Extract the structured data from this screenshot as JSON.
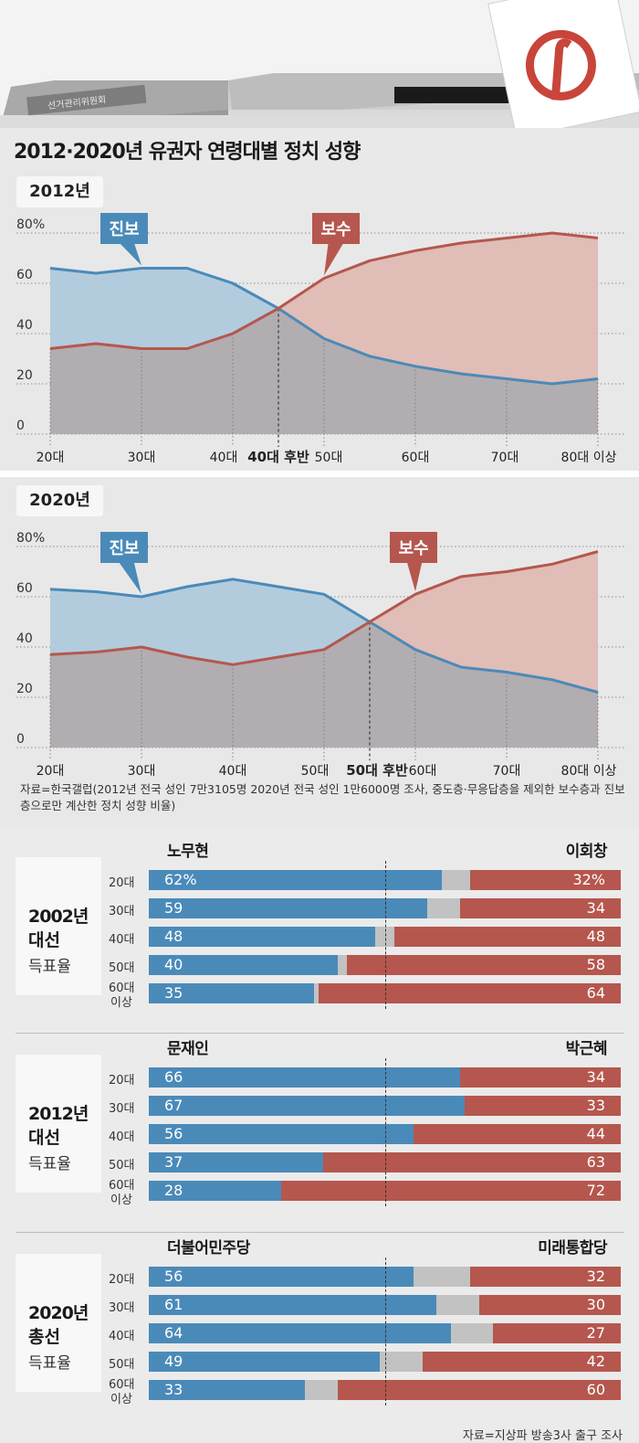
{
  "header": {
    "box_label": "선거관리위원회",
    "title": "2012·2020년 유권자 연령대별 정치 성향"
  },
  "colors": {
    "progressive": "#4a8ab9",
    "progressive_fill": "#b2ccdd",
    "conservative": "#b5574e",
    "conservative_fill": "#e0bdb7",
    "overlap_fill": "#b2adb1",
    "other": "#c2c2c2"
  },
  "chart_data": [
    {
      "type": "line",
      "year_label": "2012년",
      "y_ticks": [
        "80%",
        "60",
        "40",
        "20",
        "0"
      ],
      "ylim": [
        0,
        80
      ],
      "x_tick_labels": [
        "20대",
        "30대",
        "40대",
        "40대 후반",
        "50대",
        "60대",
        "70대",
        "80대 이상"
      ],
      "highlight_label": "40대 후반",
      "series": [
        {
          "name": "진보",
          "values": [
            66,
            64,
            66,
            66,
            60,
            50,
            38,
            31,
            27,
            24,
            22,
            20,
            22
          ]
        },
        {
          "name": "보수",
          "values": [
            34,
            36,
            34,
            34,
            40,
            50,
            62,
            69,
            73,
            76,
            78,
            80,
            78
          ]
        }
      ]
    },
    {
      "type": "line",
      "year_label": "2020년",
      "y_ticks": [
        "80%",
        "60",
        "40",
        "20",
        "0"
      ],
      "ylim": [
        0,
        80
      ],
      "x_tick_labels": [
        "20대",
        "30대",
        "40대",
        "50대",
        "50대 후반",
        "60대",
        "70대",
        "80대 이상"
      ],
      "highlight_label": "50대 후반",
      "series": [
        {
          "name": "진보",
          "values": [
            63,
            62,
            60,
            64,
            67,
            64,
            61,
            50,
            39,
            32,
            30,
            27,
            22
          ]
        },
        {
          "name": "보수",
          "values": [
            37,
            38,
            40,
            36,
            33,
            36,
            39,
            50,
            61,
            68,
            70,
            73,
            78
          ]
        }
      ]
    },
    {
      "type": "bar",
      "title": "2002년 대선 득표율",
      "candidates": [
        "노무현",
        "이회창"
      ],
      "categories": [
        "20대",
        "30대",
        "40대",
        "50대",
        "60대 이상"
      ],
      "series": [
        {
          "name": "노무현",
          "values": [
            62,
            59,
            48,
            40,
            35
          ]
        },
        {
          "name": "이회창",
          "values": [
            32,
            34,
            48,
            58,
            64
          ]
        }
      ]
    },
    {
      "type": "bar",
      "title": "2012년 대선 득표율",
      "candidates": [
        "문재인",
        "박근혜"
      ],
      "categories": [
        "20대",
        "30대",
        "40대",
        "50대",
        "60대 이상"
      ],
      "series": [
        {
          "name": "문재인",
          "values": [
            66,
            67,
            56,
            37,
            28
          ]
        },
        {
          "name": "박근혜",
          "values": [
            34,
            33,
            44,
            63,
            72
          ]
        }
      ]
    },
    {
      "type": "bar",
      "title": "2020년 총선 득표율",
      "candidates": [
        "더불어민주당",
        "미래통합당"
      ],
      "categories": [
        "20대",
        "30대",
        "40대",
        "50대",
        "60대 이상"
      ],
      "series": [
        {
          "name": "더불어민주당",
          "values": [
            56,
            61,
            64,
            49,
            33
          ]
        },
        {
          "name": "미래통합당",
          "values": [
            32,
            30,
            27,
            42,
            60
          ]
        }
      ]
    }
  ],
  "bar_sections": [
    {
      "year": "2002년",
      "kind": "대선",
      "label": "득표율",
      "first_value_suffix": "%"
    },
    {
      "year": "2012년",
      "kind": "대선",
      "label": "득표율",
      "first_value_suffix": ""
    },
    {
      "year": "2020년",
      "kind": "총선",
      "label": "득표율",
      "first_value_suffix": ""
    }
  ],
  "age_labels": [
    "20대",
    "30대",
    "40대",
    "50대",
    "60대",
    "이상"
  ],
  "source_1": "자료=한국갤럽(2012년 전국 성인 7만3105명 2020년 전국 성인 1만6000명 조사, 중도층·무응답층을 제외한 보수층과 진보층으로만 계산한 정치 성향 비율)",
  "source_2": "자료=지상파 방송3사 출구 조사"
}
